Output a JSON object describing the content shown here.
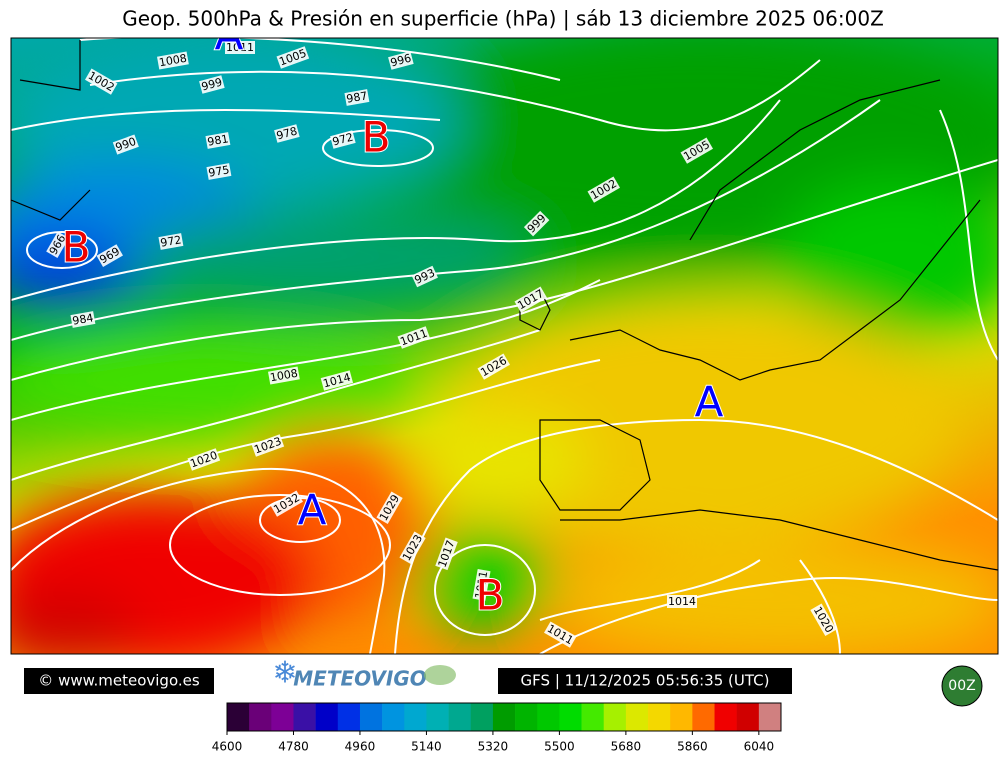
{
  "header": {
    "title": "Geop. 500hPa & Presión en superficie (hPa) | sáb 13 diciembre 2025 06:00Z"
  },
  "map": {
    "isobar_labels": [
      1011,
      1008,
      1005,
      996,
      1002,
      999,
      987,
      990,
      981,
      978,
      972,
      975,
      1005,
      1002,
      999,
      966,
      969,
      972,
      993,
      1017,
      984,
      1011,
      1026,
      1008,
      1014,
      1023,
      1020,
      1032,
      1029,
      1023,
      1017,
      1011,
      1014,
      1011,
      1020
    ],
    "pressure_centers": [
      "A",
      "B",
      "B",
      "A",
      "A",
      "B"
    ]
  },
  "footer": {
    "copyright": "© www.meteovigo.es",
    "logo": "METEOVIGO",
    "run_info": "GFS | 11/12/2025 05:56:35 (UTC)",
    "cycle": "00Z"
  },
  "colorbar": {
    "lim": [
      4600,
      6100
    ],
    "ticks": [
      4600,
      4780,
      4960,
      5140,
      5320,
      5500,
      5680,
      5860,
      6040
    ],
    "colors": [
      "#2b0036",
      "#6a0078",
      "#7d0096",
      "#3a10a6",
      "#0000c8",
      "#0030e6",
      "#0073e0",
      "#0094e0",
      "#00a8d0",
      "#00b0b4",
      "#00a890",
      "#00a060",
      "#009c00",
      "#00b400",
      "#00c800",
      "#00dc00",
      "#44ea00",
      "#a6f000",
      "#dce800",
      "#f4d800",
      "#ffb800",
      "#ff6a00",
      "#f00000",
      "#d00000",
      "#d08080"
    ]
  }
}
